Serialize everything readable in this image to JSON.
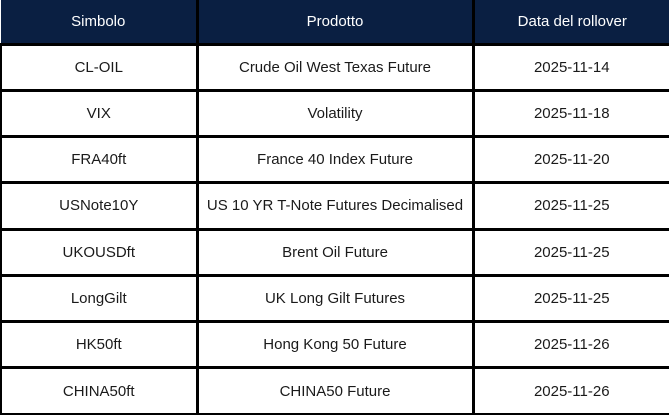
{
  "table": {
    "name": "rollover-table",
    "columns": [
      {
        "label": "Simbolo"
      },
      {
        "label": "Prodotto"
      },
      {
        "label": "Data del rollover"
      }
    ],
    "rows": [
      {
        "symbol": "CL-OIL",
        "product": "Crude Oil West Texas Future",
        "rollover_date": "2025-11-14"
      },
      {
        "symbol": "VIX",
        "product": "Volatility",
        "rollover_date": "2025-11-18"
      },
      {
        "symbol": "FRA40ft",
        "product": "France 40 Index Future",
        "rollover_date": "2025-11-20"
      },
      {
        "symbol": "USNote10Y",
        "product": "US 10 YR T-Note Futures Decimalised",
        "rollover_date": "2025-11-25"
      },
      {
        "symbol": "UKOUSDft",
        "product": "Brent Oil Future",
        "rollover_date": "2025-11-25"
      },
      {
        "symbol": "LongGilt",
        "product": "UK Long Gilt Futures",
        "rollover_date": "2025-11-25"
      },
      {
        "symbol": "HK50ft",
        "product": "Hong Kong 50 Future",
        "rollover_date": "2025-11-26"
      },
      {
        "symbol": "CHINA50ft",
        "product": "CHINA50 Future",
        "rollover_date": "2025-11-26"
      }
    ]
  },
  "colors": {
    "header_bg": "#0a1f42",
    "header_text": "#ffffff",
    "border": "#000000",
    "cell_bg": "#ffffff",
    "cell_text": "#1a1a1a"
  }
}
